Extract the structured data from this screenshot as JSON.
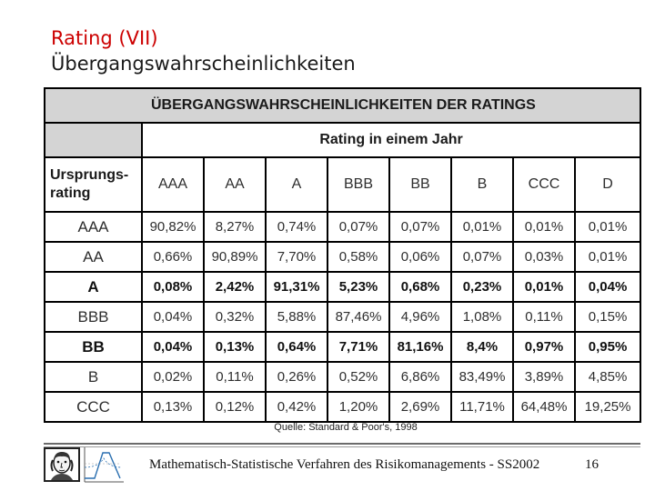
{
  "slide": {
    "title_line1": "Rating (VII)",
    "title_line2": "Übergangswahrscheinlichkeiten",
    "title_color": "#cc0000"
  },
  "table": {
    "heading": "ÜBERGANGSWAHRSCHEINLICHKEITEN DER RATINGS",
    "group_heading": "Rating in einem Jahr",
    "origin_heading": "Ursprungs-rating",
    "columns": [
      "AAA",
      "AA",
      "A",
      "BBB",
      "BB",
      "B",
      "CCC",
      "D"
    ],
    "rows": [
      {
        "label": "AAA",
        "bold": false,
        "values": [
          "90,82%",
          "8,27%",
          "0,74%",
          "0,07%",
          "0,07%",
          "0,01%",
          "0,01%",
          "0,01%"
        ]
      },
      {
        "label": "AA",
        "bold": false,
        "values": [
          "0,66%",
          "90,89%",
          "7,70%",
          "0,58%",
          "0,06%",
          "0,07%",
          "0,03%",
          "0,01%"
        ]
      },
      {
        "label": "A",
        "bold": true,
        "values": [
          "0,08%",
          "2,42%",
          "91,31%",
          "5,23%",
          "0,68%",
          "0,23%",
          "0,01%",
          "0,04%"
        ]
      },
      {
        "label": "BBB",
        "bold": false,
        "values": [
          "0,04%",
          "0,32%",
          "5,88%",
          "87,46%",
          "4,96%",
          "1,08%",
          "0,11%",
          "0,15%"
        ]
      },
      {
        "label": "BB",
        "bold": true,
        "values": [
          "0,04%",
          "0,13%",
          "0,64%",
          "7,71%",
          "81,16%",
          "8,4%",
          "0,97%",
          "0,95%"
        ]
      },
      {
        "label": "B",
        "bold": false,
        "values": [
          "0,02%",
          "0,11%",
          "0,26%",
          "0,52%",
          "6,86%",
          "83,49%",
          "3,89%",
          "4,85%"
        ]
      },
      {
        "label": "CCC",
        "bold": false,
        "values": [
          "0,13%",
          "0,12%",
          "0,42%",
          "1,20%",
          "2,69%",
          "11,71%",
          "64,48%",
          "19,25%"
        ]
      }
    ]
  },
  "source": "Quelle: Standard & Poor's, 1998",
  "footer": {
    "text": "Mathematisch-Statistische Verfahren des Risikomanagements - SS2002",
    "page_number": "16"
  }
}
